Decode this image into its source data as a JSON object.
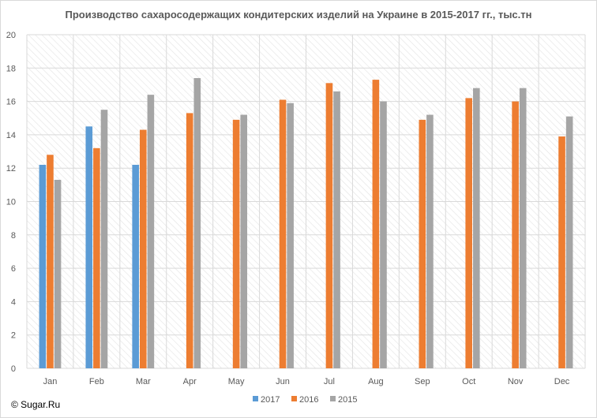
{
  "copyright": "© Sugar.Ru",
  "chart_data": {
    "type": "bar",
    "title": "Производство сахаросодержащих кондитерских изделий на Украине в 2015-2017 гг., тыс.тн",
    "categories": [
      "Jan",
      "Feb",
      "Mar",
      "Apr",
      "May",
      "Jun",
      "Jul",
      "Aug",
      "Sep",
      "Oct",
      "Nov",
      "Dec"
    ],
    "series": [
      {
        "name": "2017",
        "color": "#5b9bd5",
        "values": [
          12.2,
          14.5,
          12.2,
          null,
          null,
          null,
          null,
          null,
          null,
          null,
          null,
          null
        ]
      },
      {
        "name": "2016",
        "color": "#ed7d31",
        "values": [
          12.8,
          13.2,
          14.3,
          15.3,
          14.9,
          16.1,
          17.1,
          17.3,
          14.9,
          16.2,
          16.0,
          13.9
        ]
      },
      {
        "name": "2015",
        "color": "#a5a5a5",
        "values": [
          11.3,
          15.5,
          16.4,
          17.4,
          15.2,
          15.9,
          16.6,
          16.0,
          15.2,
          16.8,
          16.8,
          15.1
        ]
      }
    ],
    "y_ticks": [
      "0",
      "2",
      "4",
      "6",
      "8",
      "10",
      "12",
      "14",
      "16",
      "18",
      "20"
    ],
    "ylim": [
      0,
      20
    ],
    "grid": true,
    "plot_background": "hatched",
    "legend_position": "bottom"
  }
}
